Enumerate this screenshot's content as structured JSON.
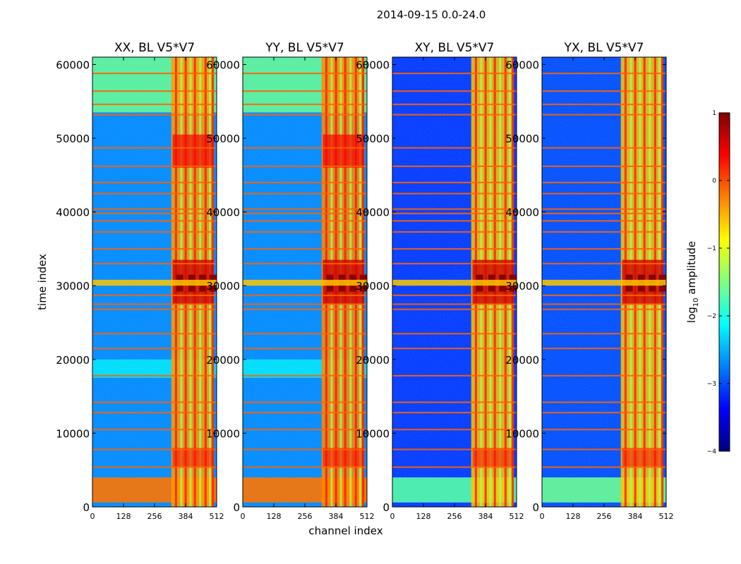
{
  "chart_data": {
    "type": "heatmap",
    "title": "2014-09-15 0.0-24.0",
    "xlabel": "channel index",
    "ylabel": "time index",
    "xlim": [
      0,
      512
    ],
    "ylim": [
      0,
      61000
    ],
    "xticks": [
      "0",
      "128",
      "256",
      "384",
      "512"
    ],
    "yticks": [
      "0",
      "10000",
      "20000",
      "30000",
      "40000",
      "50000",
      "60000"
    ],
    "colorbar": {
      "label_main": "log",
      "label_sub": "10",
      "label_rest": " amplitude",
      "range": [
        -4,
        1
      ],
      "ticks": [
        "1",
        "0",
        "−1",
        "−2",
        "−3",
        "−4"
      ]
    },
    "panels": [
      {
        "title": "XX, BL V5*V7",
        "mean_log_amplitude": -2.7,
        "band_log_amplitude": -0.4,
        "low_block_log_amplitude": -0.2
      },
      {
        "title": "YY, BL V5*V7",
        "mean_log_amplitude": -2.7,
        "band_log_amplitude": -0.3,
        "low_block_log_amplitude": -0.2
      },
      {
        "title": "XY, BL V5*V7",
        "mean_log_amplitude": -3.1,
        "band_log_amplitude": -0.6,
        "low_block_log_amplitude": -1.7
      },
      {
        "title": "YX, BL V5*V7",
        "mean_log_amplitude": -3.0,
        "band_log_amplitude": -0.6,
        "low_block_log_amplitude": -1.6
      }
    ],
    "rfi_band_channels": [
      325,
      500
    ],
    "flagged_time_rows": [
      5400,
      7800,
      10500,
      12800,
      14200,
      17800,
      21500,
      23500,
      26800,
      27500,
      28700,
      33000,
      35000,
      37300,
      38800,
      39800,
      40400,
      42500,
      44000,
      46200,
      48700,
      53200,
      54600,
      56400,
      58800
    ]
  }
}
